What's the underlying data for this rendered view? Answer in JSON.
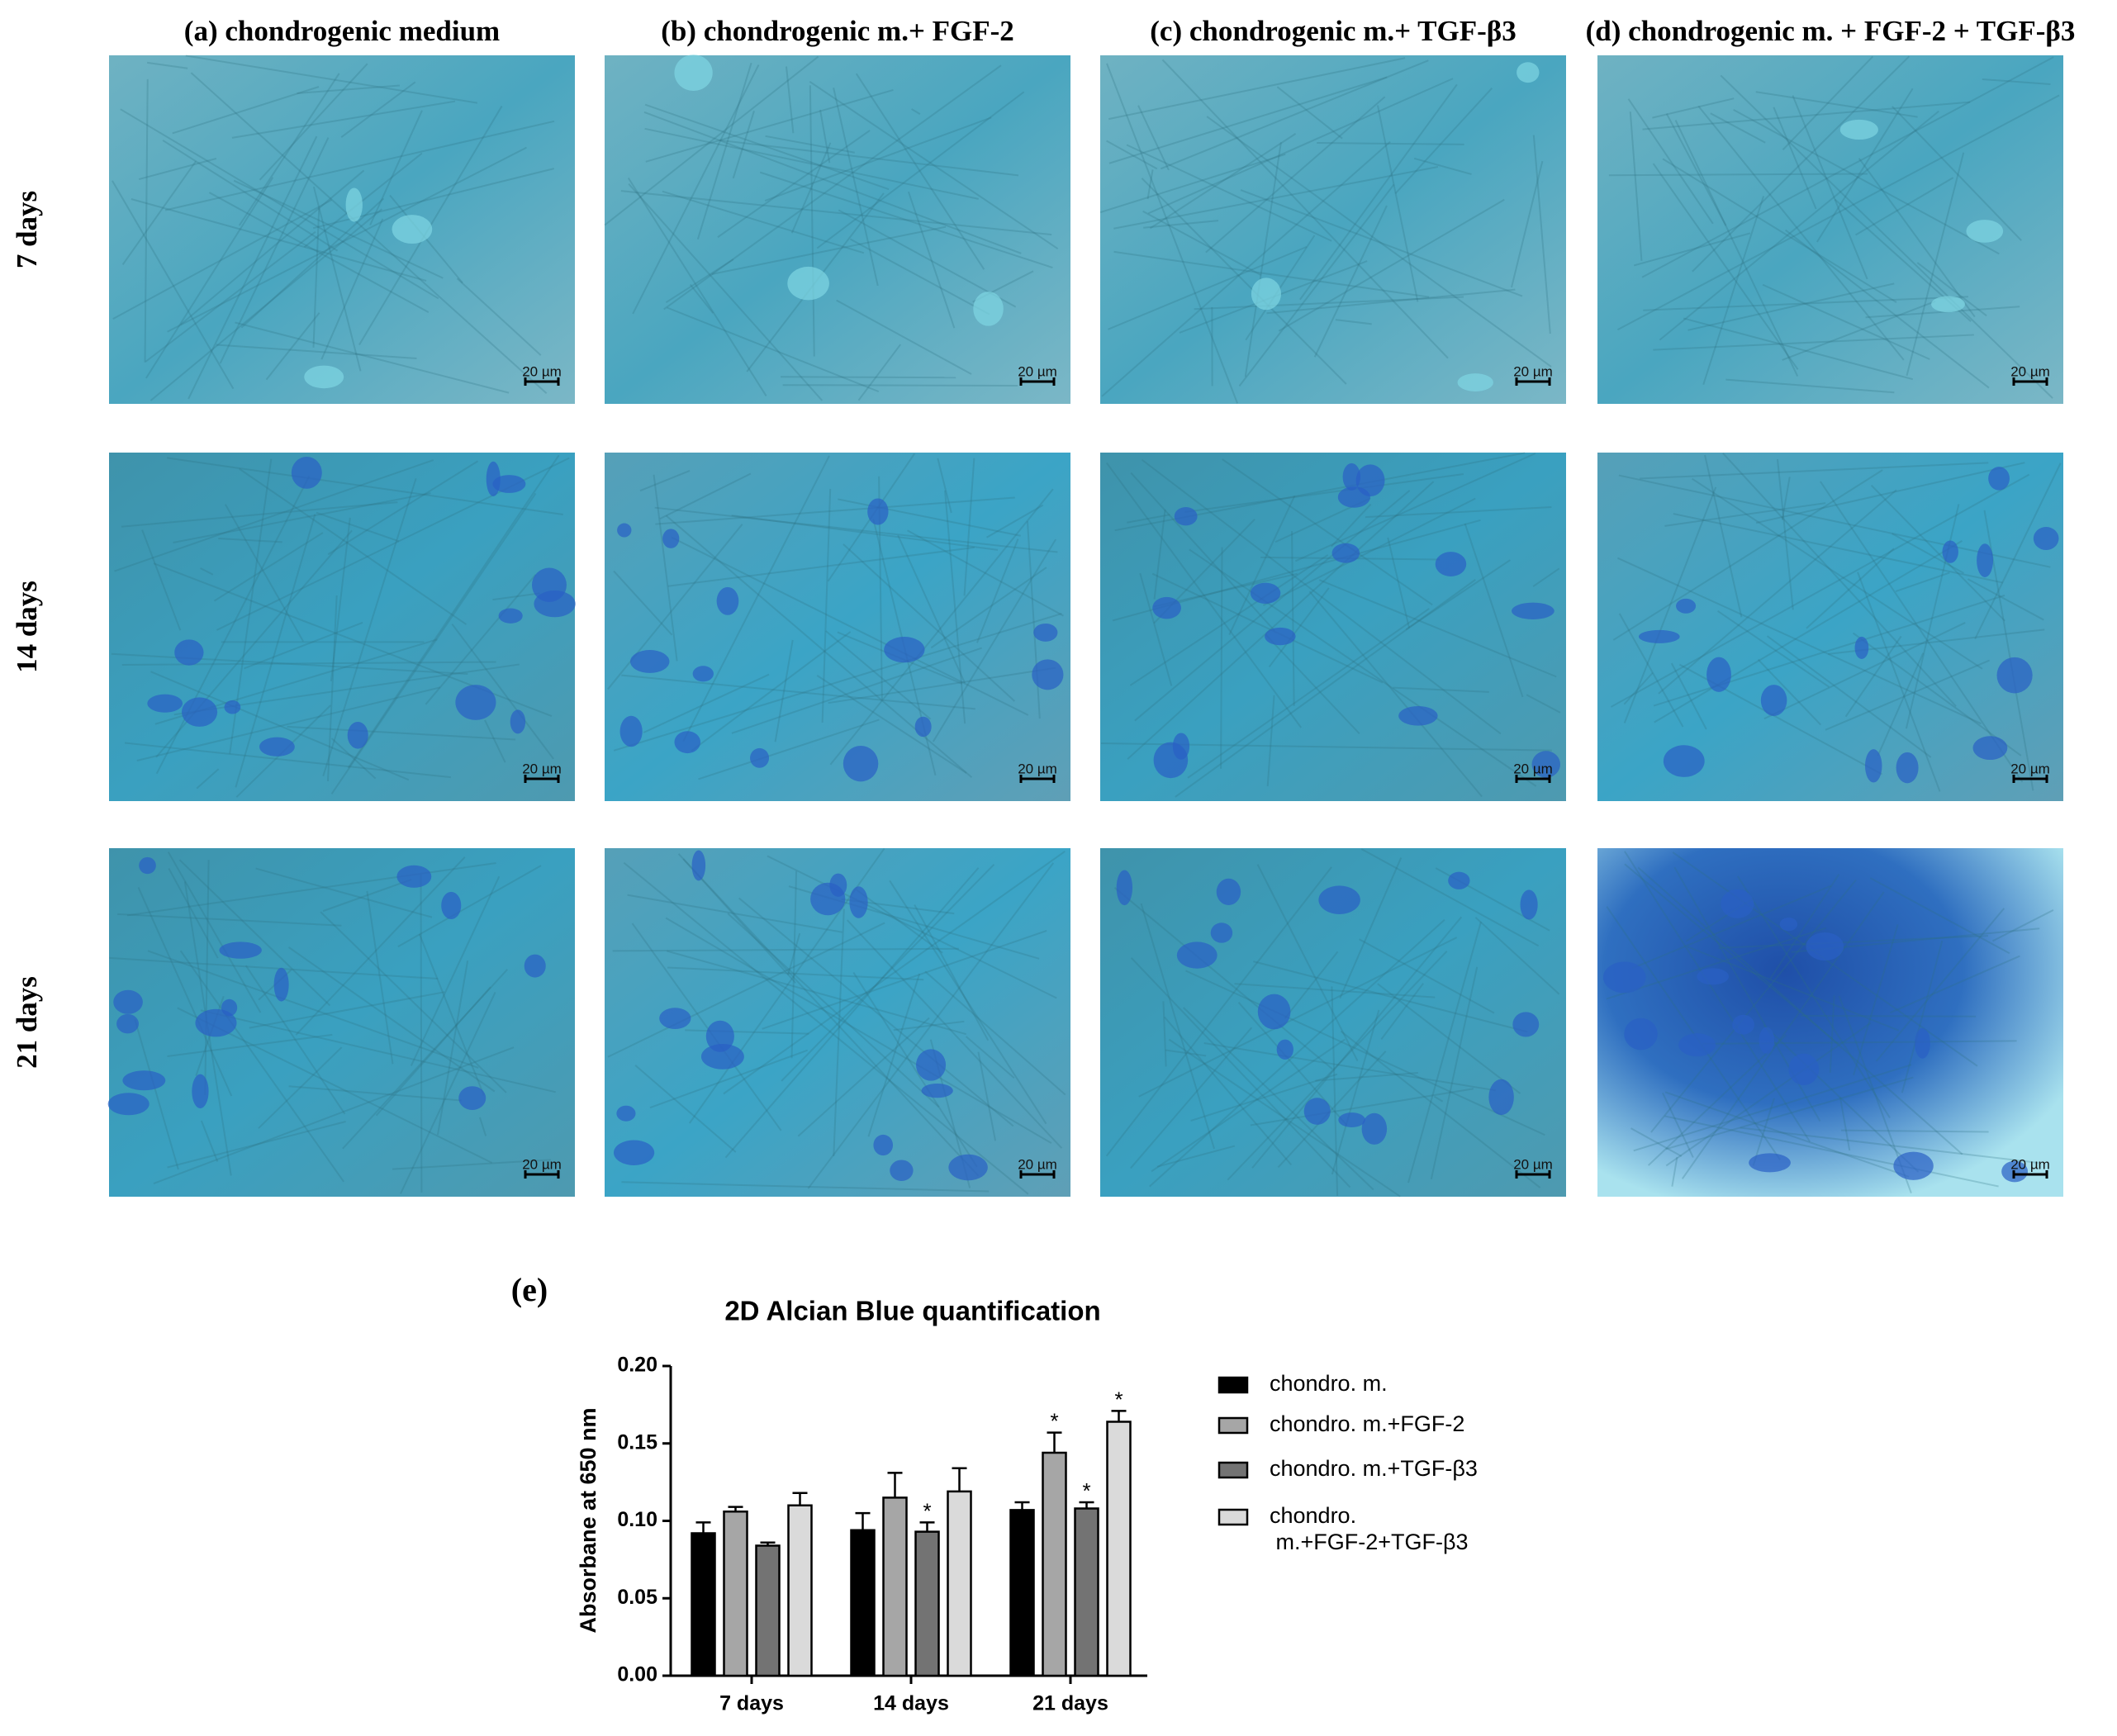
{
  "panels": {
    "columns": [
      "(a) chondrogenic medium",
      "(b) chondrogenic m.+ FGF-2",
      "(c) chondrogenic m.+ TGF-β3",
      "(d) chondrogenic m. + FGF-2 + TGF-β3"
    ],
    "rows": [
      "7 days",
      "14 days",
      "21 days"
    ],
    "scale_bar": "20 µm"
  },
  "chart_data": {
    "type": "bar",
    "panel_label": "(e)",
    "title": "2D Alcian Blue quantification",
    "y_label": "Absorbane at 650 nm",
    "categories": [
      "7 days",
      "14 days",
      "21 days"
    ],
    "series": [
      {
        "name": "chondro. m.",
        "color": "#000000",
        "values": [
          0.092,
          0.094,
          0.107
        ],
        "errors": [
          0.007,
          0.011,
          0.005
        ],
        "significance": [
          null,
          null,
          null
        ]
      },
      {
        "name": "chondro. m.+FGF-2",
        "color": "#a6a6a6",
        "values": [
          0.106,
          0.115,
          0.144
        ],
        "errors": [
          0.003,
          0.016,
          0.013
        ],
        "significance": [
          null,
          null,
          "*"
        ]
      },
      {
        "name": "chondro. m.+TGF-β3",
        "color": "#737373",
        "values": [
          0.084,
          0.093,
          0.108
        ],
        "errors": [
          0.002,
          0.006,
          0.004
        ],
        "significance": [
          null,
          "*",
          "*"
        ]
      },
      {
        "name": "chondro. m.+FGF-2+TGF-β3",
        "color": "#dadada",
        "values": [
          0.11,
          0.119,
          0.164
        ],
        "errors": [
          0.008,
          0.015,
          0.007
        ],
        "significance": [
          null,
          null,
          "*"
        ]
      }
    ],
    "ylim": [
      0,
      0.2
    ],
    "yticks": [
      {
        "value": 0,
        "label": "0.00"
      },
      {
        "value": 0.05,
        "label": "0.05"
      },
      {
        "value": 0.1,
        "label": "0.10"
      },
      {
        "value": 0.15,
        "label": "0.15"
      },
      {
        "value": 0.2,
        "label": "0.20"
      }
    ],
    "legend": "right",
    "grid": false
  }
}
